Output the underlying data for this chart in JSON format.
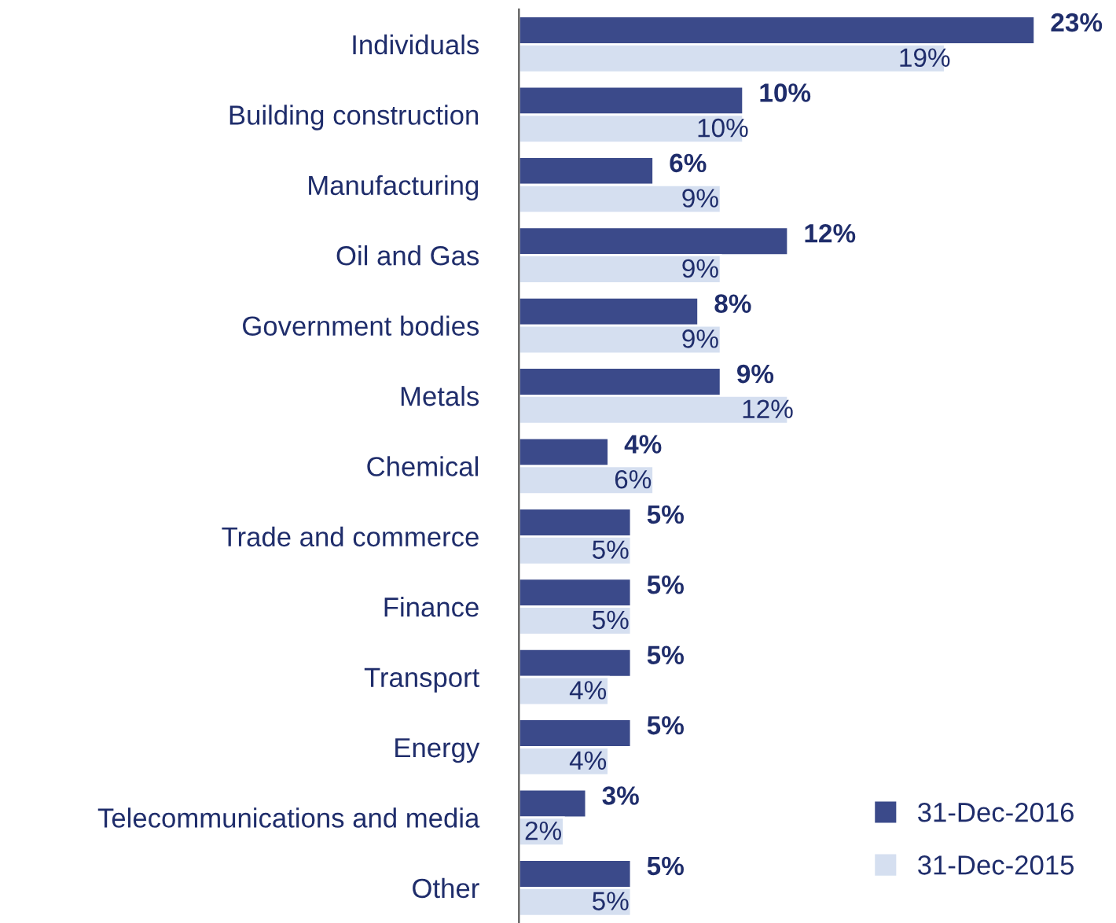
{
  "chart_data": {
    "type": "bar",
    "orientation": "horizontal",
    "categories": [
      "Individuals",
      "Building construction",
      "Manufacturing",
      "Oil and Gas",
      "Government bodies",
      "Metals",
      "Chemical",
      "Trade and commerce",
      "Finance",
      "Transport",
      "Energy",
      "Telecommunications and media",
      "Other"
    ],
    "series": [
      {
        "name": "31-Dec-2016",
        "color": "#3b4a8a",
        "values": [
          23,
          10,
          6,
          12,
          8,
          9,
          4,
          5,
          5,
          5,
          5,
          3,
          5
        ],
        "value_labels": [
          "23%",
          "10%",
          "6%",
          "12%",
          "8%",
          "9%",
          "4%",
          "5%",
          "5%",
          "5%",
          "5%",
          "3%",
          "5%"
        ]
      },
      {
        "name": "31-Dec-2015",
        "color": "#d5dff0",
        "values": [
          19,
          10,
          9,
          9,
          9,
          12,
          6,
          5,
          5,
          4,
          4,
          2,
          5
        ],
        "value_labels": [
          "19%",
          "10%",
          "9%",
          "9%",
          "9%",
          "12%",
          "6%",
          "5%",
          "5%",
          "4%",
          "4%",
          "2%",
          "5%"
        ]
      }
    ],
    "legend": "bottom right",
    "grid": false
  }
}
